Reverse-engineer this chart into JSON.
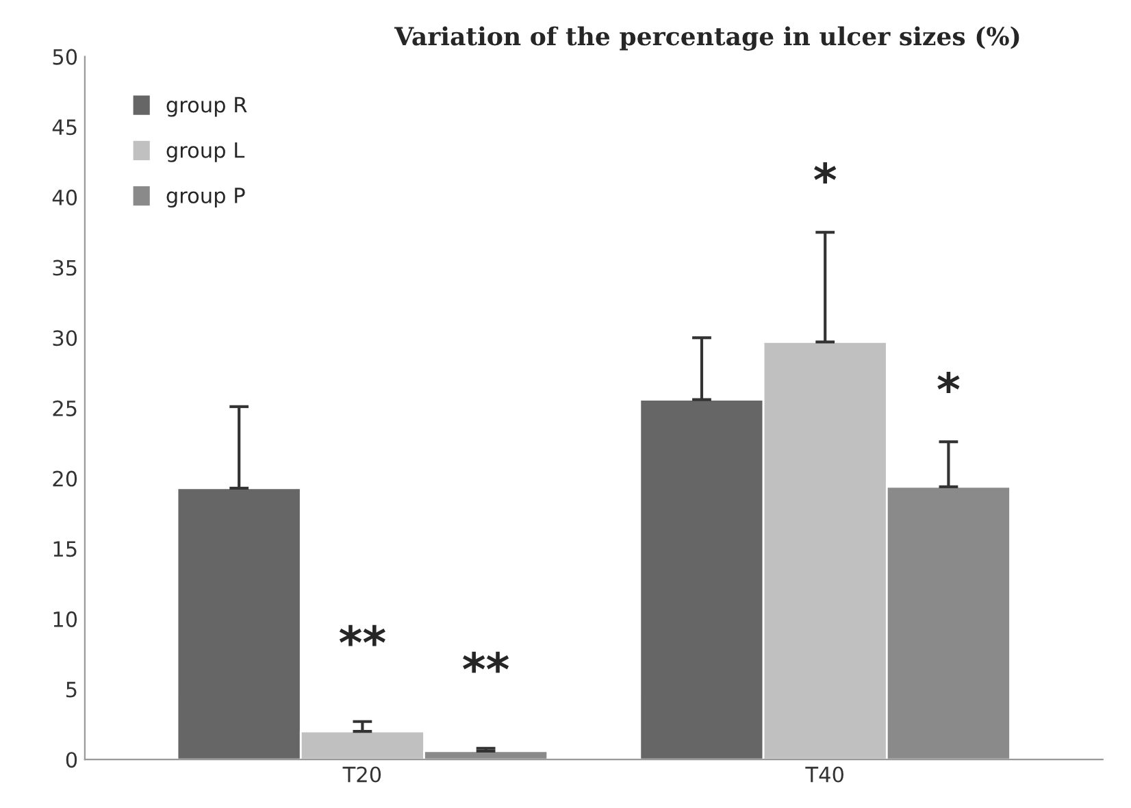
{
  "chart_data": {
    "type": "bar",
    "title": "Variation of the percentage in ulcer sizes (%)",
    "categories": [
      "T20",
      "T40"
    ],
    "series": [
      {
        "name": "group R",
        "color": "#666666",
        "values": [
          19.3,
          25.6
        ],
        "errors": [
          [
            19.3,
            25.1
          ],
          [
            25.6,
            30.0
          ]
        ]
      },
      {
        "name": "group L",
        "color": "#c0c0c0",
        "values": [
          2.0,
          29.7
        ],
        "errors": [
          [
            2.0,
            2.7
          ],
          [
            29.7,
            37.5
          ]
        ]
      },
      {
        "name": "group P",
        "color": "#8a8a8a",
        "values": [
          0.6,
          19.4
        ],
        "errors": [
          [
            0.6,
            0.8
          ],
          [
            19.4,
            22.6
          ]
        ]
      }
    ],
    "ylim": [
      0,
      50
    ],
    "yticks": [
      0,
      5,
      10,
      15,
      20,
      25,
      30,
      35,
      40,
      45,
      50
    ],
    "grid": false,
    "legend": "top left",
    "annotations": [
      "**",
      "**",
      "*",
      "*"
    ]
  }
}
